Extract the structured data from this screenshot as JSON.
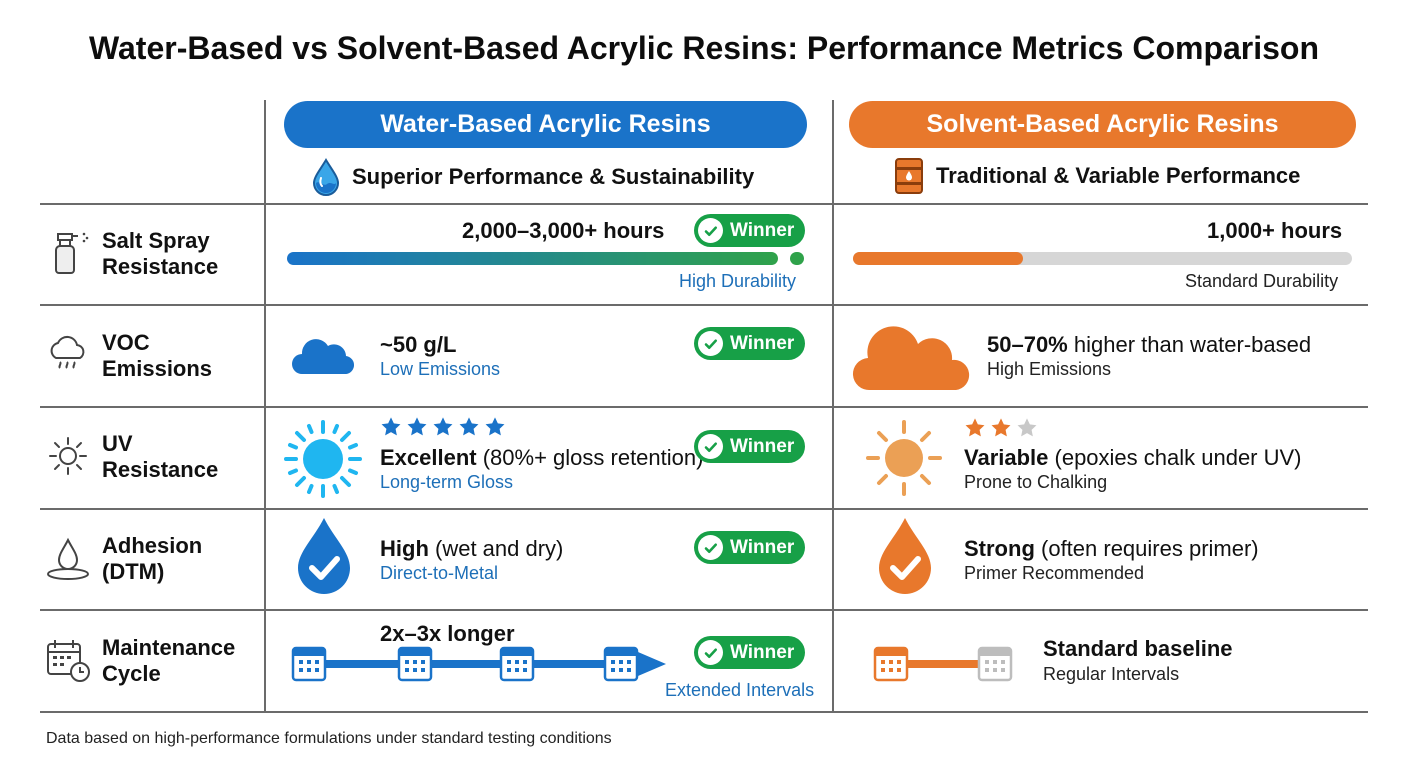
{
  "title": "Water-Based vs Solvent-Based Acrylic Resins: Performance Metrics Comparison",
  "columns": {
    "water": {
      "header": "Water-Based Acrylic Resins",
      "subheader": "Superior Performance & Sustainability",
      "color": "#1a73c9",
      "icon": "water-drop-icon"
    },
    "solvent": {
      "header": "Solvent-Based Acrylic Resins",
      "subheader": "Traditional & Variable Performance",
      "color": "#e8782c",
      "icon": "oil-barrel-icon"
    }
  },
  "winner_label": "Winner",
  "metrics": {
    "salt_spray": {
      "label_line1": "Salt Spray",
      "label_line2": "Resistance",
      "icon": "spray-bottle-icon",
      "water_value": "2,000–3,000+ hours",
      "water_note": "High Durability",
      "water_level": 0.97,
      "solvent_value": "1,000+ hours",
      "solvent_note": "Standard Durability",
      "solvent_level": 0.34
    },
    "voc": {
      "label_line1": "VOC",
      "label_line2": "Emissions",
      "icon": "cloud-emissions-icon",
      "water_value": "~50 g/L",
      "water_note": "Low Emissions",
      "solvent_value_bold": "50–70%",
      "solvent_value_rest": " higher than water-based",
      "solvent_note": "High Emissions"
    },
    "uv": {
      "label_line1": "UV",
      "label_line2": "Resistance",
      "icon": "sun-icon",
      "water_rating": 5,
      "water_value_bold": "Excellent",
      "water_value_rest": " (80%+ gloss retention)",
      "water_note": "Long-term Gloss",
      "solvent_rating": 2,
      "solvent_rating_max": 3,
      "solvent_value_bold": "Variable",
      "solvent_value_rest": " (epoxies chalk under UV)",
      "solvent_note": "Prone to Chalking"
    },
    "adhesion": {
      "label_line1": "Adhesion",
      "label_line2": "(DTM)",
      "icon": "drop-surface-icon",
      "water_value_bold": "High",
      "water_value_rest": " (wet and dry)",
      "water_note": "Direct-to-Metal",
      "solvent_value_bold": "Strong",
      "solvent_value_rest": " (often requires primer)",
      "solvent_note": "Primer Recommended"
    },
    "maintenance": {
      "label_line1": "Maintenance",
      "label_line2": "Cycle",
      "icon": "calendar-clock-icon",
      "water_value": "2x–3x longer",
      "water_note": "Extended Intervals",
      "solvent_value": "Standard baseline",
      "solvent_note": "Regular Intervals"
    }
  },
  "footnote": "Data based on high-performance formulations under standard testing conditions"
}
